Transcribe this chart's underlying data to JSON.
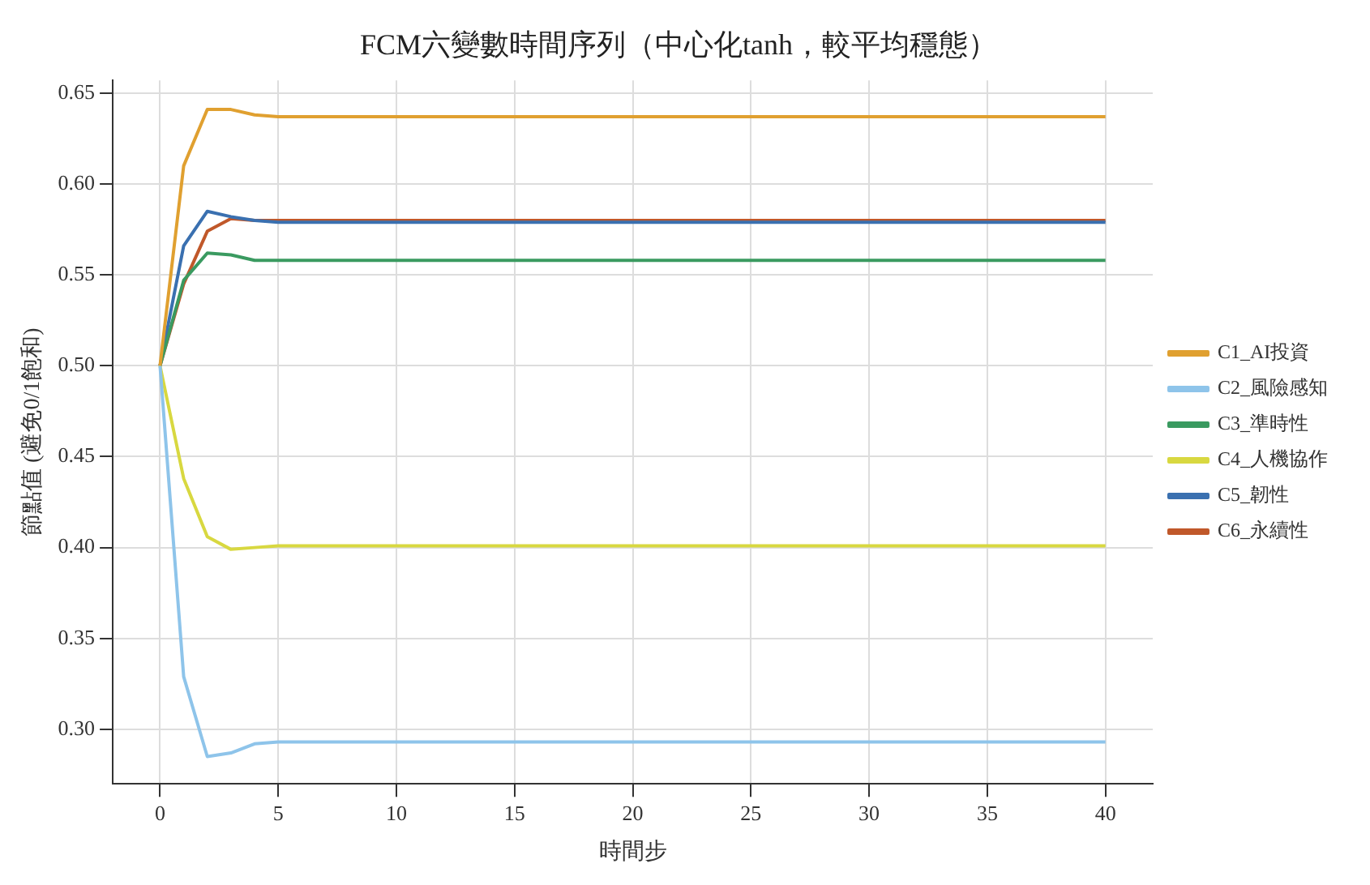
{
  "chart_data": {
    "type": "line",
    "title": "FCM六變數時間序列（中心化tanh，較平均穩態）",
    "xlabel": "時間步",
    "ylabel": "節點值 (避免0/1飽和)",
    "x": [
      0,
      1,
      2,
      3,
      4,
      5,
      6,
      7,
      8,
      9,
      10,
      11,
      12,
      13,
      14,
      15,
      16,
      17,
      18,
      19,
      20,
      21,
      22,
      23,
      24,
      25,
      26,
      27,
      28,
      29,
      30,
      31,
      32,
      33,
      34,
      35,
      36,
      37,
      38,
      39,
      40
    ],
    "series": [
      {
        "name": "C1_AI投資",
        "color": "#e0a030",
        "values": [
          0.5,
          0.61,
          0.641,
          0.641,
          0.638,
          0.637,
          0.637,
          0.637,
          0.637,
          0.637,
          0.637,
          0.637,
          0.637,
          0.637,
          0.637,
          0.637,
          0.637,
          0.637,
          0.637,
          0.637,
          0.637,
          0.637,
          0.637,
          0.637,
          0.637,
          0.637,
          0.637,
          0.637,
          0.637,
          0.637,
          0.637,
          0.637,
          0.637,
          0.637,
          0.637,
          0.637,
          0.637,
          0.637,
          0.637,
          0.637,
          0.637
        ]
      },
      {
        "name": "C2_風險感知",
        "color": "#8ec4ea",
        "values": [
          0.5,
          0.329,
          0.285,
          0.287,
          0.292,
          0.293,
          0.293,
          0.293,
          0.293,
          0.293,
          0.293,
          0.293,
          0.293,
          0.293,
          0.293,
          0.293,
          0.293,
          0.293,
          0.293,
          0.293,
          0.293,
          0.293,
          0.293,
          0.293,
          0.293,
          0.293,
          0.293,
          0.293,
          0.293,
          0.293,
          0.293,
          0.293,
          0.293,
          0.293,
          0.293,
          0.293,
          0.293,
          0.293,
          0.293,
          0.293,
          0.293
        ]
      },
      {
        "name": "C3_準時性",
        "color": "#3a9a60",
        "values": [
          0.5,
          0.547,
          0.562,
          0.561,
          0.558,
          0.558,
          0.558,
          0.558,
          0.558,
          0.558,
          0.558,
          0.558,
          0.558,
          0.558,
          0.558,
          0.558,
          0.558,
          0.558,
          0.558,
          0.558,
          0.558,
          0.558,
          0.558,
          0.558,
          0.558,
          0.558,
          0.558,
          0.558,
          0.558,
          0.558,
          0.558,
          0.558,
          0.558,
          0.558,
          0.558,
          0.558,
          0.558,
          0.558,
          0.558,
          0.558,
          0.558
        ]
      },
      {
        "name": "C4_人機協作",
        "color": "#d8d840",
        "values": [
          0.5,
          0.438,
          0.406,
          0.399,
          0.4,
          0.401,
          0.401,
          0.401,
          0.401,
          0.401,
          0.401,
          0.401,
          0.401,
          0.401,
          0.401,
          0.401,
          0.401,
          0.401,
          0.401,
          0.401,
          0.401,
          0.401,
          0.401,
          0.401,
          0.401,
          0.401,
          0.401,
          0.401,
          0.401,
          0.401,
          0.401,
          0.401,
          0.401,
          0.401,
          0.401,
          0.401,
          0.401,
          0.401,
          0.401,
          0.401,
          0.401
        ]
      },
      {
        "name": "C5_韌性",
        "color": "#3a70b0",
        "values": [
          0.5,
          0.566,
          0.585,
          0.582,
          0.58,
          0.579,
          0.579,
          0.579,
          0.579,
          0.579,
          0.579,
          0.579,
          0.579,
          0.579,
          0.579,
          0.579,
          0.579,
          0.579,
          0.579,
          0.579,
          0.579,
          0.579,
          0.579,
          0.579,
          0.579,
          0.579,
          0.579,
          0.579,
          0.579,
          0.579,
          0.579,
          0.579,
          0.579,
          0.579,
          0.579,
          0.579,
          0.579,
          0.579,
          0.579,
          0.579,
          0.579
        ]
      },
      {
        "name": "C6_永續性",
        "color": "#c0582a",
        "values": [
          0.5,
          0.545,
          0.574,
          0.581,
          0.58,
          0.58,
          0.58,
          0.58,
          0.58,
          0.58,
          0.58,
          0.58,
          0.58,
          0.58,
          0.58,
          0.58,
          0.58,
          0.58,
          0.58,
          0.58,
          0.58,
          0.58,
          0.58,
          0.58,
          0.58,
          0.58,
          0.58,
          0.58,
          0.58,
          0.58,
          0.58,
          0.58,
          0.58,
          0.58,
          0.58,
          0.58,
          0.58,
          0.58,
          0.58,
          0.58,
          0.58
        ]
      }
    ],
    "xlim": [
      -2,
      42
    ],
    "xticks": [
      0,
      5,
      10,
      15,
      20,
      25,
      30,
      35,
      40
    ],
    "ylim": [
      0.27,
      0.657
    ],
    "yticks": [
      {
        "value": 0.3,
        "label": "0.30"
      },
      {
        "value": 0.35,
        "label": "0.35"
      },
      {
        "value": 0.4,
        "label": "0.40"
      },
      {
        "value": 0.45,
        "label": "0.45"
      },
      {
        "value": 0.5,
        "label": "0.50"
      },
      {
        "value": 0.55,
        "label": "0.55"
      },
      {
        "value": 0.6,
        "label": "0.60"
      },
      {
        "value": 0.65,
        "label": "0.65"
      }
    ],
    "grid": true,
    "legend": "right",
    "marker": "none",
    "line_style": "solid"
  }
}
